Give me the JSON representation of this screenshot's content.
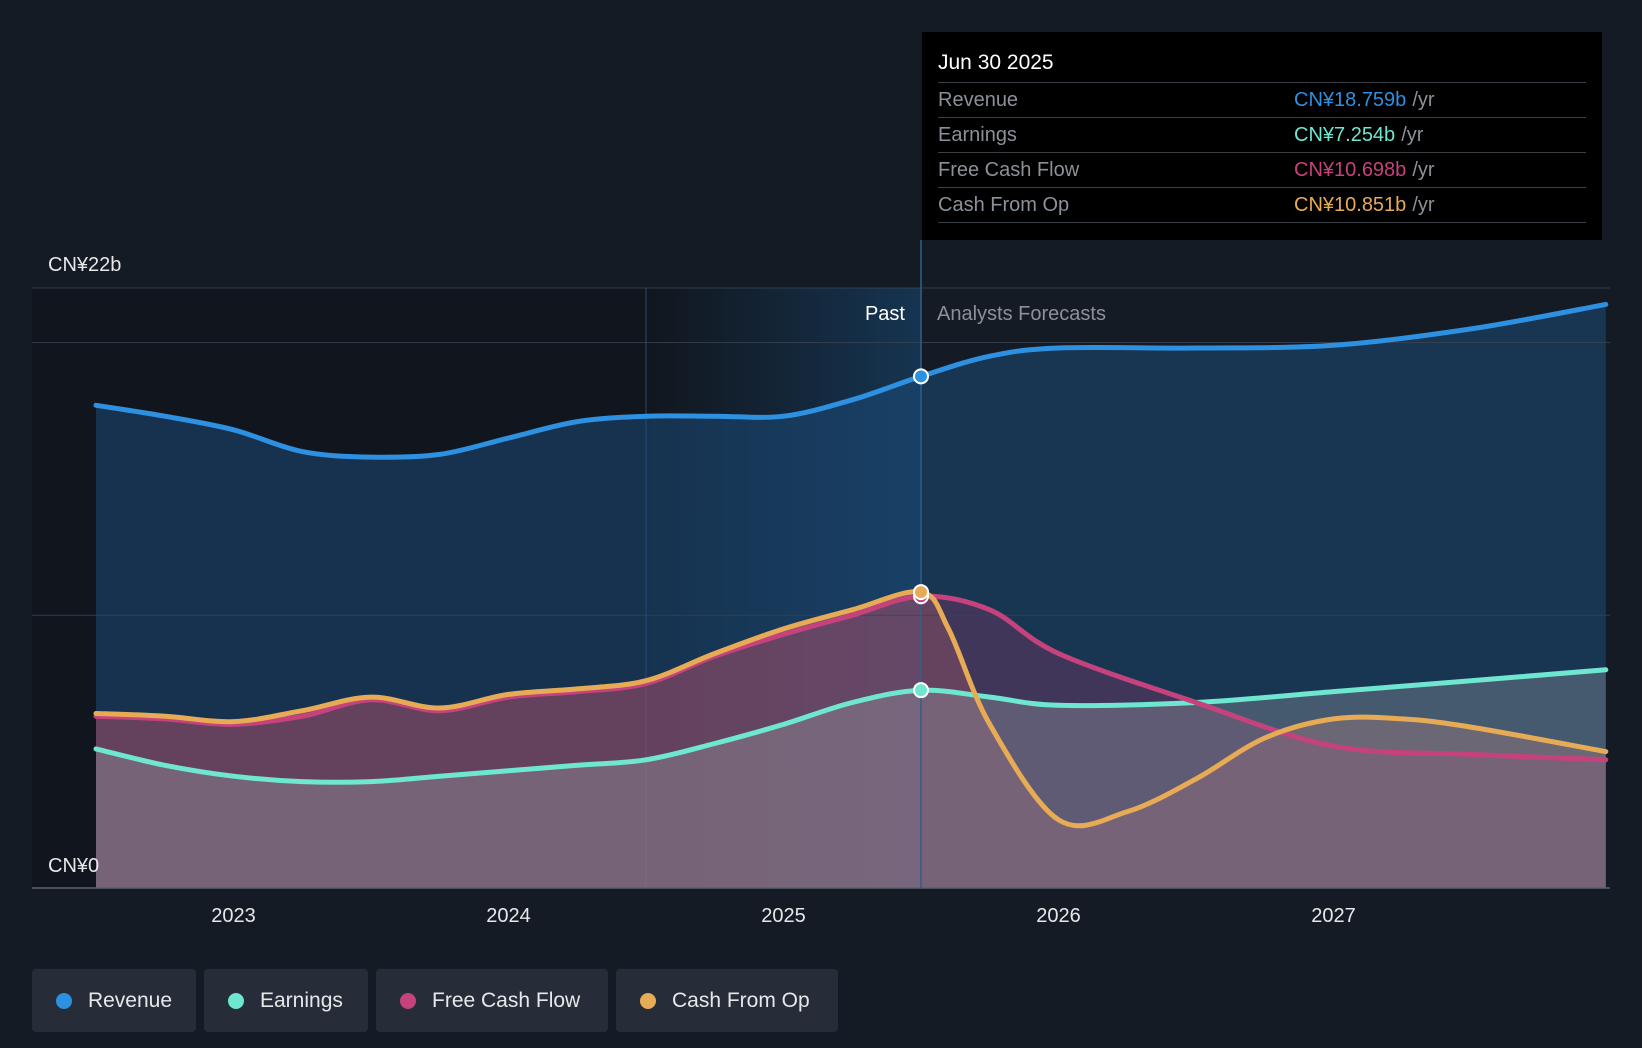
{
  "chart_data": {
    "type": "line",
    "x_ticks": [
      "2023",
      "2024",
      "2025",
      "2026",
      "2027"
    ],
    "y_axis": {
      "top_label": "CN¥22b",
      "bottom_label": "CN¥0",
      "ylim": [
        0,
        22
      ]
    },
    "divider_x": 2025.5,
    "zones": {
      "past": "Past",
      "forecast": "Analysts Forecasts"
    },
    "series": [
      {
        "key": "revenue",
        "name": "Revenue",
        "color": "#2d90e0",
        "x": [
          2022.5,
          2022.75,
          2023.0,
          2023.25,
          2023.5,
          2023.75,
          2024.0,
          2024.25,
          2024.5,
          2024.75,
          2025.0,
          2025.25,
          2025.5,
          2025.75,
          2026.0,
          2026.5,
          2027.0,
          2027.5,
          2027.99
        ],
        "y": [
          17.7,
          17.3,
          16.8,
          16.0,
          15.8,
          15.9,
          16.5,
          17.1,
          17.3,
          17.3,
          17.3,
          17.9,
          18.759,
          19.5,
          19.8,
          19.8,
          19.9,
          20.5,
          21.4
        ]
      },
      {
        "key": "earnings",
        "name": "Earnings",
        "color": "#6ee6d0",
        "x": [
          2022.5,
          2022.75,
          2023.0,
          2023.25,
          2023.5,
          2023.75,
          2024.0,
          2024.25,
          2024.5,
          2024.75,
          2025.0,
          2025.25,
          2025.5,
          2025.75,
          2026.0,
          2026.5,
          2027.0,
          2027.5,
          2027.99
        ],
        "y": [
          5.1,
          4.5,
          4.1,
          3.9,
          3.9,
          4.1,
          4.3,
          4.5,
          4.7,
          5.3,
          6.0,
          6.8,
          7.254,
          7.0,
          6.7,
          6.8,
          7.2,
          7.6,
          8.0
        ]
      },
      {
        "key": "fcf",
        "name": "Free Cash Flow",
        "color": "#c5427d",
        "x": [
          2022.5,
          2022.75,
          2023.0,
          2023.25,
          2023.5,
          2023.75,
          2024.0,
          2024.25,
          2024.5,
          2024.75,
          2025.0,
          2025.25,
          2025.5,
          2025.75,
          2026.0,
          2026.5,
          2027.0,
          2027.5,
          2027.99
        ],
        "y": [
          6.3,
          6.2,
          6.0,
          6.3,
          6.9,
          6.5,
          7.0,
          7.2,
          7.5,
          8.5,
          9.3,
          10.0,
          10.698,
          10.2,
          8.6,
          6.8,
          5.2,
          4.9,
          4.7
        ]
      },
      {
        "key": "cfo",
        "name": "Cash From Op",
        "color": "#e8ab55",
        "x": [
          2022.5,
          2022.75,
          2023.0,
          2023.25,
          2023.5,
          2023.75,
          2024.0,
          2024.25,
          2024.5,
          2024.75,
          2025.0,
          2025.25,
          2025.5,
          2025.6,
          2025.75,
          2026.0,
          2026.25,
          2026.5,
          2026.75,
          2027.0,
          2027.25,
          2027.5,
          2027.99
        ],
        "y": [
          6.4,
          6.3,
          6.1,
          6.5,
          7.0,
          6.6,
          7.1,
          7.3,
          7.6,
          8.6,
          9.5,
          10.2,
          10.851,
          9.5,
          6.0,
          2.5,
          2.8,
          4.0,
          5.5,
          6.2,
          6.2,
          5.9,
          5.0
        ]
      }
    ]
  },
  "tooltip": {
    "date": "Jun 30 2025",
    "rows": [
      {
        "label": "Revenue",
        "value": "CN¥18.759b",
        "unit": "/yr",
        "color": "#2d90e0"
      },
      {
        "label": "Earnings",
        "value": "CN¥7.254b",
        "unit": "/yr",
        "color": "#6ee6d0"
      },
      {
        "label": "Free Cash Flow",
        "value": "CN¥10.698b",
        "unit": "/yr",
        "color": "#c5427d"
      },
      {
        "label": "Cash From Op",
        "value": "CN¥10.851b",
        "unit": "/yr",
        "color": "#e8ab55"
      }
    ]
  },
  "legend": [
    {
      "label": "Revenue",
      "color": "#2d90e0"
    },
    {
      "label": "Earnings",
      "color": "#6ee6d0"
    },
    {
      "label": "Free Cash Flow",
      "color": "#c5427d"
    },
    {
      "label": "Cash From Op",
      "color": "#e8ab55"
    }
  ]
}
